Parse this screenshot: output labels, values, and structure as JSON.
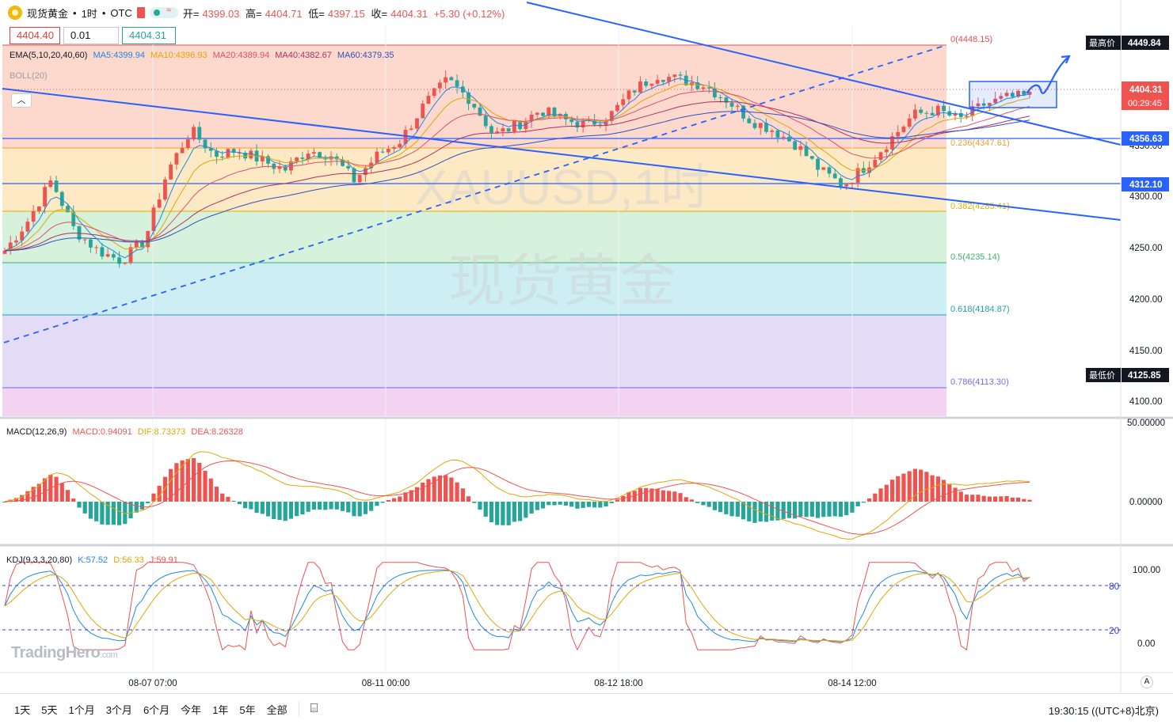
{
  "header": {
    "symbol_name": "现货黄金",
    "interval": "1时",
    "exchange": "OTC",
    "open_label": "开=",
    "open": "4399.03",
    "high_label": "高=",
    "high": "4404.71",
    "low_label": "低=",
    "low": "4397.15",
    "close_label": "收=",
    "close": "4404.31",
    "change": "+5.30 (+0.12%)",
    "bid": "4404.40",
    "spread": "0.01",
    "ask": "4404.31"
  },
  "indicators": {
    "ema_label": "EMA(5,10,20,40,60)",
    "ma5": "MA5:4399.94",
    "ma10": "MA10:4396.93",
    "ma20": "MA20:4389.94",
    "ma40": "MA40:4382.67",
    "ma60": "MA60:4379.35",
    "boll_label": "BOLL(20)",
    "macd_label": "MACD(12,26,9)",
    "macd_value": "MACD:0.94091",
    "dif_value": "DIF:8.73373",
    "dea_value": "DEA:8.26328",
    "kdj_label": "KDJ(9,3,3,20,80)",
    "k_value": "K:57.52",
    "d_value": "D:56.33",
    "j_value": "J:59.91"
  },
  "watermark": {
    "line1": "XAUUSD,1时",
    "line2": "现货黄金",
    "brand": "TradingHero",
    "brand_suffix": ".com"
  },
  "fibonacci": [
    {
      "label": "0(4448.15)",
      "color": "#e05050"
    },
    {
      "label": "0.236(4347.61)",
      "color": "#f0a030"
    },
    {
      "label": "0.382(4285.41)",
      "color": "#e0b000"
    },
    {
      "label": "0.5(4235.14)",
      "color": "#3cb371"
    },
    {
      "label": "0.618(4184.87)",
      "color": "#1ea0b4"
    },
    {
      "label": "0.786(4113.30)",
      "color": "#7b68ee"
    }
  ],
  "price_axis": {
    "ticks": [
      "4350.00",
      "4300.00",
      "4250.00",
      "4200.00",
      "4150.00",
      "4100.00"
    ],
    "highest_label": "最高价",
    "highest_value": "4449.84",
    "lowest_label": "最低价",
    "lowest_value": "4125.85",
    "current_price": "4404.31",
    "countdown": "00:29:45",
    "level_a": "4356.63",
    "level_b": "4312.10"
  },
  "macd_axis": {
    "top": "50.00000",
    "zero": "0.00000"
  },
  "kdj_axis": {
    "top": "100.00",
    "bottom": "0.00",
    "upper": "80",
    "lower": "20"
  },
  "time_axis": [
    "08-07 07:00",
    "08-11 00:00",
    "08-12 18:00",
    "08-14 12:00"
  ],
  "timeframes": [
    "1天",
    "5天",
    "1个月",
    "3个月",
    "6个月",
    "今年",
    "1年",
    "5年",
    "全部"
  ],
  "clock": "19:30:15 ((UTC+8)北京)",
  "auto_label": "A",
  "colors": {
    "up": "#ef5350",
    "down": "#26a69a",
    "trend": "#2962ff"
  },
  "chart_data": {
    "type": "candlestick",
    "interval": "1时",
    "ylim": [
      4090,
      4460
    ],
    "x_labels": [
      "08-07 07:00",
      "08-11 00:00",
      "08-12 18:00",
      "08-14 12:00"
    ],
    "close_series_approx": [
      4250,
      4280,
      4320,
      4270,
      4250,
      4240,
      4260,
      4330,
      4370,
      4345,
      4350,
      4340,
      4330,
      4350,
      4345,
      4320,
      4345,
      4360,
      4395,
      4420,
      4400,
      4365,
      4375,
      4390,
      4380,
      4375,
      4385,
      4410,
      4425,
      4420,
      4415,
      4400,
      4380,
      4370,
      4355,
      4330,
      4315,
      4335,
      4360,
      4385,
      4390,
      4380,
      4395,
      4402,
      4404
    ]
  }
}
